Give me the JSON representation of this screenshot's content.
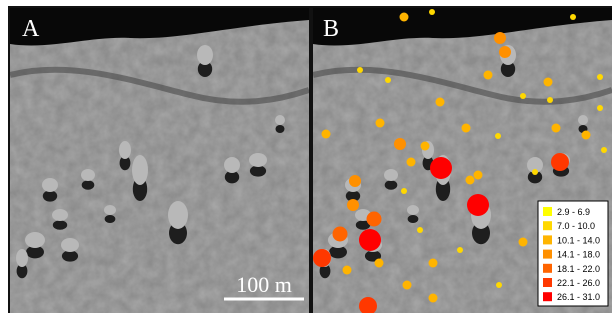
{
  "panels": [
    {
      "label": "A"
    },
    {
      "label": "B"
    }
  ],
  "scale_bar": {
    "label": "100 m"
  },
  "legend": {
    "items": [
      {
        "label": "2.9 - 6.9",
        "color": "#ffff00"
      },
      {
        "label": "7.0 - 10.0",
        "color": "#ffd800"
      },
      {
        "label": "10.1 - 14.0",
        "color": "#ffb400"
      },
      {
        "label": "14.1 - 18.0",
        "color": "#ff9000"
      },
      {
        "label": "18.1 - 22.0",
        "color": "#ff6400"
      },
      {
        "label": "22.1 - 26.0",
        "color": "#ff3800"
      },
      {
        "label": "26.1 - 31.0",
        "color": "#ff0000"
      }
    ]
  }
}
